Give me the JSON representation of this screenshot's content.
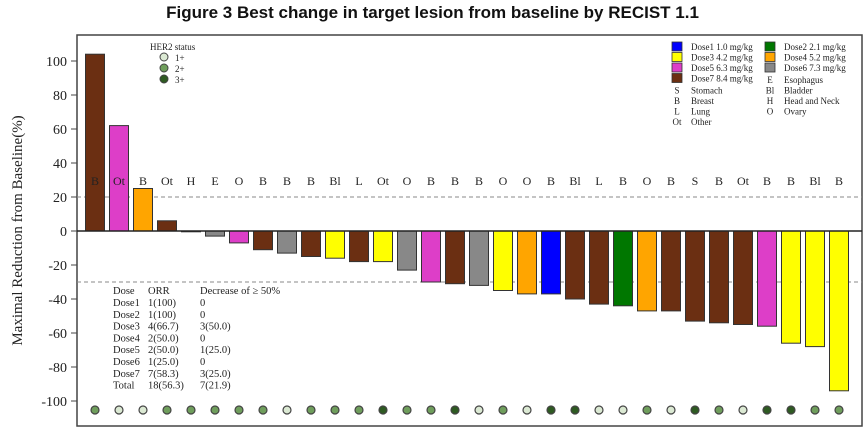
{
  "chart_data": {
    "type": "bar",
    "title": "Figure 3   Best change in target lesion from baseline by RECIST 1.1",
    "ylabel": "Maximal Reduction from Baseline(%)",
    "xlabel": "",
    "ylim": [
      -110,
      115
    ],
    "yticks": [
      100,
      80,
      60,
      40,
      20,
      0,
      -20,
      -40,
      -60,
      -80,
      -100
    ],
    "reference_lines": [
      20,
      -30
    ],
    "grid": false,
    "tumor_labels": [
      "B",
      "Ot",
      "B",
      "Ot",
      "H",
      "E",
      "O",
      "B",
      "B",
      "B",
      "Bl",
      "L",
      "Ot",
      "O",
      "B",
      "B",
      "B",
      "O",
      "O",
      "B",
      "Bl",
      "L",
      "B",
      "O",
      "B",
      "S",
      "B",
      "Ot",
      "B",
      "B",
      "Bl",
      "B"
    ],
    "values": [
      104,
      62,
      25,
      6,
      0,
      -3,
      -7,
      -11,
      -13,
      -15,
      -16,
      -18,
      -18,
      -23,
      -30,
      -31,
      -32,
      -35,
      -37,
      -37,
      -40,
      -43,
      -44,
      -47,
      -47,
      -53,
      -54,
      -55,
      -56,
      -66,
      -68,
      -94
    ],
    "dose_group": [
      7,
      5,
      4,
      7,
      4,
      6,
      5,
      7,
      6,
      7,
      3,
      7,
      3,
      6,
      5,
      7,
      6,
      3,
      4,
      1,
      7,
      7,
      2,
      4,
      7,
      7,
      7,
      7,
      5,
      3,
      3,
      3
    ],
    "her2_status": [
      2,
      1,
      1,
      2,
      2,
      2,
      2,
      2,
      1,
      2,
      2,
      2,
      3,
      2,
      2,
      3,
      1,
      2,
      1,
      3,
      3,
      1,
      1,
      2,
      1,
      3,
      2,
      1,
      3,
      3,
      2,
      2
    ],
    "dose_legend": [
      {
        "dose": 1,
        "label": "Dose1 1.0 mg/kg",
        "color": "#0000ff"
      },
      {
        "dose": 2,
        "label": "Dose2 2.1 mg/kg",
        "color": "#007700"
      },
      {
        "dose": 3,
        "label": "Dose3 4.2 mg/kg",
        "color": "#ffff00"
      },
      {
        "dose": 4,
        "label": "Dose4 5.2 mg/kg",
        "color": "#ffa500"
      },
      {
        "dose": 5,
        "label": "Dose5 6.3 mg/kg",
        "color": "#dd3ec8"
      },
      {
        "dose": 6,
        "label": "Dose6 7.3 mg/kg",
        "color": "#888888"
      },
      {
        "dose": 7,
        "label": "Dose7 8.4 mg/kg",
        "color": "#6b2f12"
      }
    ],
    "tumor_legend": [
      {
        "code": "E",
        "label": "Esophagus"
      },
      {
        "code": "S",
        "label": "Stomach"
      },
      {
        "code": "Bl",
        "label": "Bladder"
      },
      {
        "code": "B",
        "label": "Breast"
      },
      {
        "code": "H",
        "label": "Head and Neck"
      },
      {
        "code": "L",
        "label": "Lung"
      },
      {
        "code": "O",
        "label": "Ovary"
      },
      {
        "code": "Ot",
        "label": "Other"
      }
    ],
    "her2_legend": {
      "title": "HER2 status",
      "items": [
        {
          "level": 1,
          "label": "1+",
          "color": "#dbe9d3"
        },
        {
          "level": 2,
          "label": "2+",
          "color": "#6f9e5c"
        },
        {
          "level": 3,
          "label": "3+",
          "color": "#2e5a22"
        }
      ]
    },
    "summary_table": {
      "headers": [
        "Dose",
        "ORR",
        "Decrease of ≥ 50%"
      ],
      "rows": [
        [
          "Dose1",
          "1(100)",
          "0"
        ],
        [
          "Dose2",
          "1(100)",
          "0"
        ],
        [
          "Dose3",
          "4(66.7)",
          "3(50.0)"
        ],
        [
          "Dose4",
          "2(50.0)",
          "0"
        ],
        [
          "Dose5",
          "2(50.0)",
          "1(25.0)"
        ],
        [
          "Dose6",
          "1(25.0)",
          "0"
        ],
        [
          "Dose7",
          "7(58.3)",
          "3(25.0)"
        ],
        [
          "Total",
          "18(56.3)",
          "7(21.9)"
        ]
      ]
    }
  }
}
